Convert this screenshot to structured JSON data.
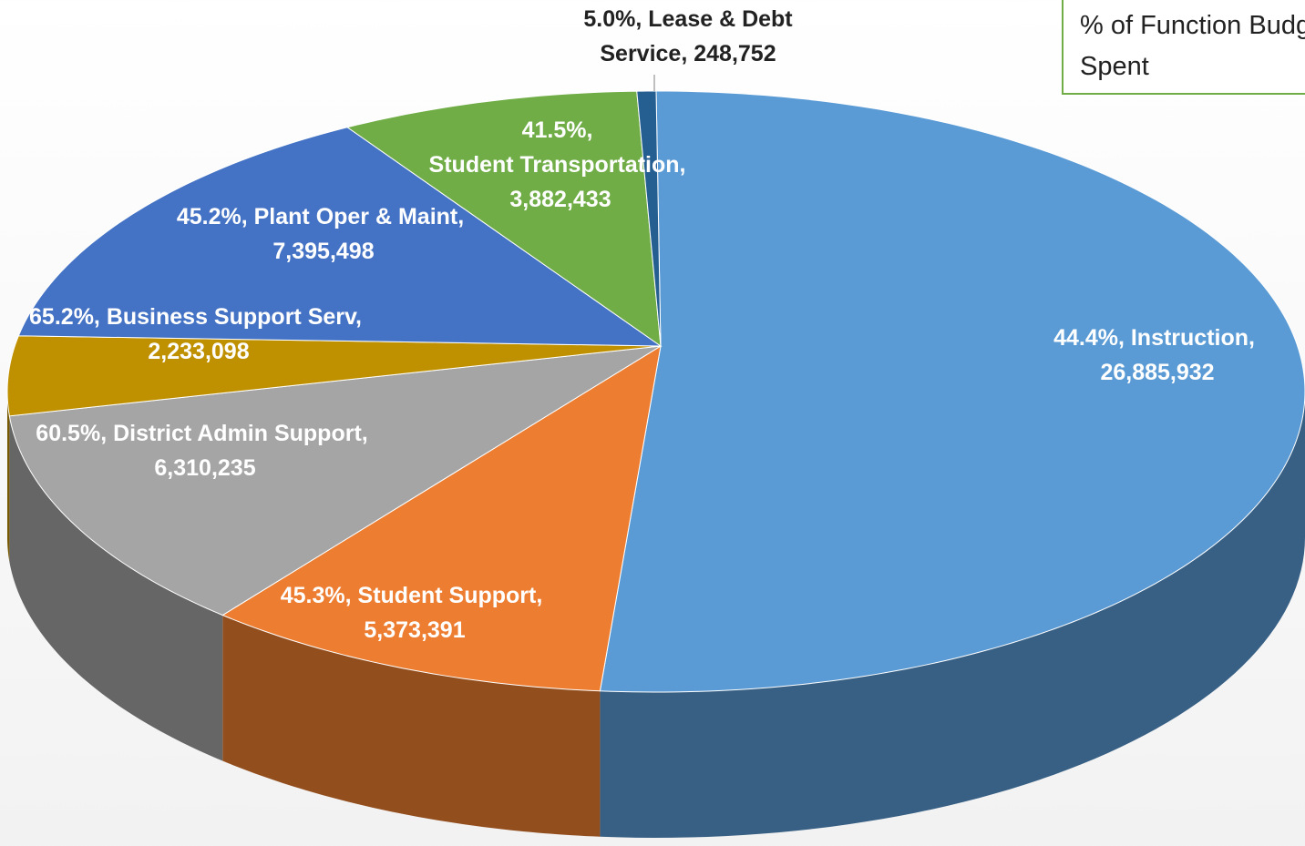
{
  "chart_data": {
    "type": "pie3d",
    "legend_title": "% of Function Budget Spent",
    "categories": [
      "Instruction",
      "Student Support",
      "District Admin Support",
      "Business Support Serv",
      "Plant Oper & Maint",
      "Student Transportation",
      "Lease & Debt Service"
    ],
    "values": [
      26885932,
      5373391,
      6310235,
      2233098,
      7395498,
      3882433,
      248752
    ],
    "value_labels": [
      "26,885,932",
      "5,373,391",
      "6,310,235",
      "2,233,098",
      "7,395,498",
      "3,882,433",
      "248,752"
    ],
    "percent_spent": [
      44.4,
      45.3,
      60.5,
      65.2,
      45.2,
      41.5,
      5.0
    ],
    "percent_labels": [
      "44.4%",
      "45.3%",
      "60.5%",
      "65.2%",
      "45.2%",
      "41.5%",
      "5.0%"
    ],
    "colors": [
      "#5b9bd5",
      "#ed7d31",
      "#a5a5a5",
      "#bf9000",
      "#4472c4",
      "#70ad47",
      "#255e91"
    ]
  }
}
